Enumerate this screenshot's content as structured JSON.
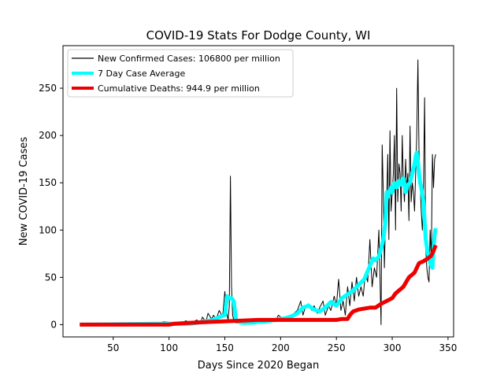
{
  "chart_data": {
    "type": "line",
    "title": "COVID-19 Stats For Dodge County, WI",
    "xlabel": "Days Since 2020 Began",
    "ylabel": "New COVID-19 Cases",
    "xlim": [
      5,
      355
    ],
    "ylim": [
      -13,
      295
    ],
    "xticks": [
      50,
      100,
      150,
      200,
      250,
      300,
      350
    ],
    "yticks": [
      0,
      50,
      100,
      150,
      200,
      250
    ],
    "legend_position": "top-left",
    "grid": false,
    "series": [
      {
        "name": "New Confirmed Cases: 106800 per million",
        "color": "#000000",
        "x": [
          20,
          70,
          85,
          95,
          105,
          110,
          115,
          120,
          125,
          128,
          130,
          133,
          135,
          138,
          140,
          142,
          145,
          148,
          150,
          152,
          153,
          154,
          155,
          156,
          157,
          158,
          160,
          163,
          165,
          168,
          170,
          175,
          180,
          185,
          190,
          195,
          198,
          200,
          205,
          210,
          212,
          215,
          218,
          220,
          222,
          225,
          228,
          230,
          233,
          235,
          238,
          240,
          243,
          245,
          248,
          250,
          252,
          254,
          256,
          258,
          260,
          262,
          264,
          266,
          268,
          270,
          272,
          274,
          276,
          278,
          280,
          282,
          284,
          286,
          288,
          290,
          291,
          292,
          293,
          294,
          295,
          296,
          297,
          298,
          299,
          300,
          301,
          302,
          303,
          304,
          305,
          306,
          307,
          308,
          309,
          310,
          311,
          312,
          313,
          314,
          315,
          316,
          317,
          318,
          319,
          320,
          321,
          322,
          323,
          324,
          325,
          326,
          327,
          328,
          329,
          330,
          331,
          332,
          333,
          334,
          335,
          336,
          337,
          338,
          339
        ],
        "values": [
          0,
          0,
          0,
          3,
          2,
          1,
          4,
          2,
          5,
          1,
          8,
          3,
          12,
          6,
          10,
          5,
          15,
          8,
          35,
          10,
          5,
          20,
          157,
          40,
          10,
          5,
          2,
          1,
          3,
          0,
          2,
          3,
          4,
          2,
          6,
          3,
          10,
          8,
          6,
          9,
          12,
          15,
          25,
          10,
          18,
          22,
          15,
          20,
          12,
          18,
          25,
          10,
          20,
          15,
          30,
          20,
          48,
          15,
          25,
          10,
          40,
          20,
          45,
          25,
          50,
          30,
          40,
          30,
          55,
          45,
          90,
          40,
          60,
          50,
          100,
          0,
          190,
          140,
          60,
          115,
          130,
          180,
          90,
          205,
          120,
          140,
          160,
          200,
          100,
          250,
          130,
          170,
          160,
          120,
          200,
          150,
          130,
          175,
          140,
          160,
          110,
          210,
          130,
          150,
          140,
          120,
          160,
          200,
          280,
          180,
          150,
          120,
          100,
          140,
          240,
          80,
          60,
          50,
          45,
          100,
          70,
          180,
          145,
          175,
          180
        ],
        "line_width": 1
      },
      {
        "name": "7 Day Case Average",
        "color": "#00ffff",
        "x": [
          20,
          90,
          100,
          110,
          120,
          130,
          140,
          145,
          150,
          152,
          154,
          156,
          158,
          160,
          162,
          165,
          170,
          175,
          180,
          185,
          190,
          195,
          200,
          205,
          210,
          215,
          220,
          225,
          230,
          235,
          240,
          245,
          250,
          255,
          260,
          265,
          270,
          275,
          280,
          283,
          285,
          288,
          290,
          292,
          294,
          295,
          296,
          297,
          298,
          299,
          300,
          302,
          304,
          306,
          308,
          310,
          312,
          314,
          316,
          318,
          320,
          321,
          322,
          323,
          324,
          325,
          326,
          328,
          330,
          332,
          334,
          336,
          337,
          338,
          339
        ],
        "values": [
          0,
          1,
          1,
          1,
          1,
          3,
          5,
          8,
          10,
          30,
          28,
          28,
          25,
          5,
          3,
          2,
          2,
          2,
          3,
          3,
          4,
          5,
          6,
          7,
          9,
          12,
          18,
          20,
          16,
          14,
          18,
          24,
          20,
          28,
          32,
          36,
          42,
          48,
          62,
          70,
          68,
          72,
          80,
          90,
          110,
          140,
          135,
          138,
          142,
          145,
          140,
          150,
          145,
          152,
          148,
          155,
          140,
          148,
          150,
          160,
          170,
          178,
          182,
          172,
          160,
          150,
          145,
          130,
          90,
          75,
          65,
          60,
          80,
          95,
          102
        ],
        "line_width": 5
      },
      {
        "name": "Cumulative Deaths: 944.9 per million",
        "color": "#ee0000",
        "x": [
          20,
          100,
          105,
          120,
          140,
          160,
          180,
          200,
          220,
          240,
          250,
          255,
          260,
          262,
          265,
          270,
          280,
          285,
          290,
          295,
          300,
          303,
          306,
          310,
          315,
          320,
          322,
          324,
          328,
          332,
          335,
          337,
          339
        ],
        "values": [
          0,
          0,
          1,
          2,
          3,
          4,
          5,
          5,
          5,
          5,
          5,
          6,
          6,
          10,
          14,
          16,
          18,
          18,
          22,
          25,
          28,
          33,
          36,
          40,
          50,
          55,
          60,
          65,
          67,
          70,
          73,
          78,
          84
        ],
        "line_width": 5
      }
    ]
  }
}
